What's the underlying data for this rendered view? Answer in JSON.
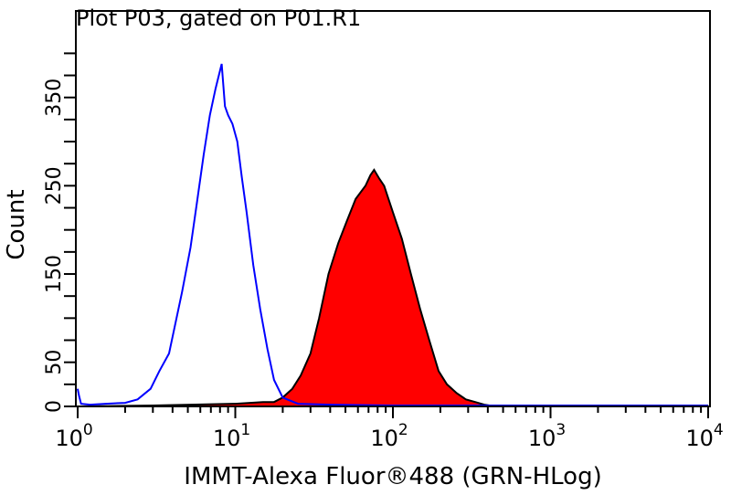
{
  "chart_data": {
    "type": "area",
    "title": "Plot P03, gated on P01.R1",
    "xlabel": "IMMT-Alexa Fluor®488 (GRN-HLog)",
    "ylabel": "Count",
    "x_scale": "log",
    "xlim": [
      1,
      10000
    ],
    "ylim": [
      0,
      448
    ],
    "x_ticks": [
      {
        "base": "10",
        "exp": "0",
        "value": 1
      },
      {
        "base": "10",
        "exp": "1",
        "value": 10
      },
      {
        "base": "10",
        "exp": "2",
        "value": 100
      },
      {
        "base": "10",
        "exp": "3",
        "value": 1000
      },
      {
        "base": "10",
        "exp": "4",
        "value": 10000
      }
    ],
    "y_tick_labels": [
      "0",
      "50",
      "150",
      "250",
      "350"
    ],
    "y_tick_values": [
      0,
      25,
      50,
      75,
      100,
      125,
      150,
      175,
      200,
      225,
      250,
      275,
      300,
      325,
      350,
      375,
      400
    ],
    "grid": false,
    "series": [
      {
        "color": "#0000ff",
        "fill": "none",
        "x": [
          1.0,
          1.02,
          1.05,
          1.2,
          1.5,
          2.0,
          2.4,
          2.9,
          3.3,
          3.8,
          4.6,
          5.2,
          5.7,
          6.3,
          6.9,
          7.5,
          8.2,
          8.6,
          9.0,
          9.6,
          10.3,
          11.0,
          11.8,
          13.0,
          14.4,
          16.0,
          17.6,
          20,
          25,
          40,
          100,
          1000,
          10000
        ],
        "y": [
          20,
          12,
          3,
          2,
          3,
          4,
          8,
          20,
          40,
          60,
          130,
          180,
          230,
          285,
          330,
          360,
          388,
          340,
          330,
          320,
          300,
          260,
          220,
          160,
          110,
          65,
          30,
          10,
          3,
          2,
          1,
          1,
          1
        ]
      },
      {
        "color": "#ff0000",
        "stroke": "#000000",
        "fill": "#ff0000",
        "x": [
          1.0,
          3,
          10,
          15,
          17.6,
          20,
          23,
          26,
          30,
          34,
          39,
          45,
          51,
          58,
          67,
          72,
          76,
          82,
          88,
          100,
          114,
          130,
          149,
          170,
          195,
          220,
          254,
          290,
          333,
          380,
          450,
          10000
        ],
        "y": [
          0,
          1,
          3,
          5,
          5,
          10,
          20,
          35,
          60,
          100,
          150,
          185,
          210,
          235,
          250,
          262,
          268,
          258,
          250,
          220,
          190,
          150,
          110,
          75,
          40,
          25,
          15,
          8,
          5,
          2,
          0,
          0
        ]
      }
    ]
  }
}
